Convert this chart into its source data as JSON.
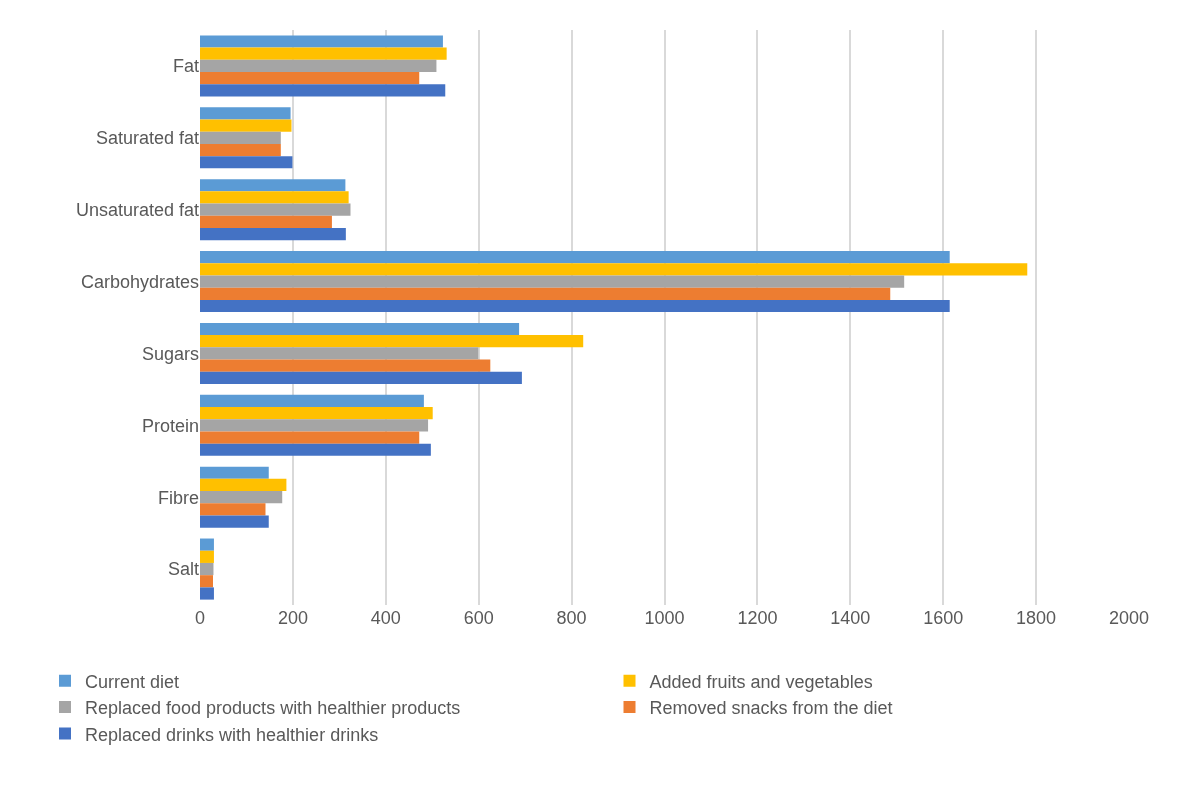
{
  "chart_data": {
    "type": "bar",
    "orientation": "horizontal",
    "categories": [
      "Fat",
      "Saturated fat",
      "Unsaturated fat",
      "Carbohydrates",
      "Sugars",
      "Protein",
      "Fibre",
      "Salt"
    ],
    "series": [
      {
        "name": "Current diet",
        "color": "#5b9bd5",
        "values": [
          523,
          195,
          313,
          1614,
          687,
          482,
          148,
          30
        ]
      },
      {
        "name": "Added fruits and vegetables",
        "color": "#ffc000",
        "values": [
          531,
          197,
          320,
          1781,
          825,
          501,
          186,
          30
        ]
      },
      {
        "name": "Replaced food products with healthier products",
        "color": "#a5a5a5",
        "values": [
          509,
          174,
          324,
          1516,
          599,
          491,
          177,
          29
        ]
      },
      {
        "name": "Removed snacks from the diet",
        "color": "#ed7d31",
        "values": [
          472,
          174,
          284,
          1486,
          625,
          472,
          141,
          28
        ]
      },
      {
        "name": "Replaced drinks with healthier drinks",
        "color": "#4472c4",
        "values": [
          528,
          199,
          314,
          1614,
          693,
          497,
          148,
          30
        ]
      }
    ],
    "xlim": [
      0,
      2000
    ],
    "xticks": [
      0,
      200,
      400,
      600,
      800,
      1000,
      1200,
      1400,
      1600,
      1800,
      2000
    ],
    "grid": "x",
    "legend": "bottom"
  }
}
